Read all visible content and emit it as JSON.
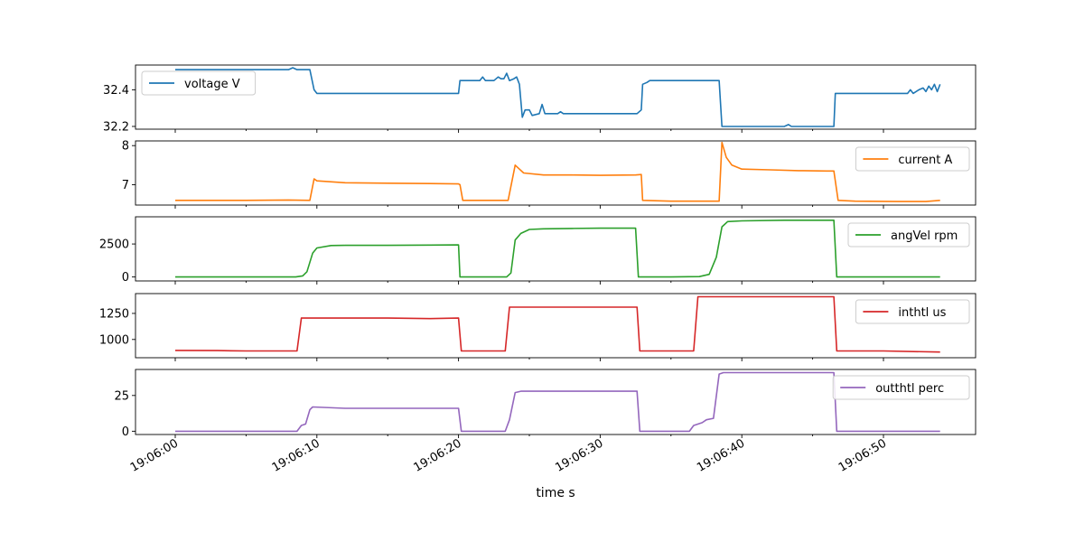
{
  "figure": {
    "xlabel": "time s",
    "x_tick_labels": [
      "19:06:00",
      "19:06:10",
      "19:06:20",
      "19:06:30",
      "19:06:40",
      "19:06:50"
    ]
  },
  "chart_data": [
    {
      "type": "line",
      "series": [
        {
          "name": "voltage V",
          "color": "#1f77b4",
          "points": [
            [
              0,
              32.51
            ],
            [
              2,
              32.51
            ],
            [
              4,
              32.51
            ],
            [
              6,
              32.51
            ],
            [
              8,
              32.51
            ],
            [
              8.3,
              32.52
            ],
            [
              8.6,
              32.51
            ],
            [
              9.5,
              32.51
            ],
            [
              9.8,
              32.4
            ],
            [
              10,
              32.38
            ],
            [
              12,
              32.38
            ],
            [
              15,
              32.38
            ],
            [
              18,
              32.38
            ],
            [
              20,
              32.38
            ],
            [
              20.1,
              32.45
            ],
            [
              21,
              32.45
            ],
            [
              21.5,
              32.45
            ],
            [
              21.7,
              32.47
            ],
            [
              21.9,
              32.45
            ],
            [
              22.5,
              32.45
            ],
            [
              22.8,
              32.47
            ],
            [
              23,
              32.46
            ],
            [
              23.2,
              32.46
            ],
            [
              23.4,
              32.49
            ],
            [
              23.6,
              32.45
            ],
            [
              23.9,
              32.46
            ],
            [
              24.1,
              32.47
            ],
            [
              24.3,
              32.43
            ],
            [
              24.5,
              32.25
            ],
            [
              24.7,
              32.29
            ],
            [
              25,
              32.29
            ],
            [
              25.2,
              32.26
            ],
            [
              25.7,
              32.27
            ],
            [
              25.9,
              32.32
            ],
            [
              26.1,
              32.27
            ],
            [
              26.5,
              32.27
            ],
            [
              27,
              32.27
            ],
            [
              27.2,
              32.28
            ],
            [
              27.4,
              32.27
            ],
            [
              30,
              32.27
            ],
            [
              32.6,
              32.27
            ],
            [
              32.9,
              32.29
            ],
            [
              33,
              32.43
            ],
            [
              33.3,
              32.44
            ],
            [
              33.5,
              32.45
            ],
            [
              35,
              32.45
            ],
            [
              38,
              32.45
            ],
            [
              38.4,
              32.45
            ],
            [
              38.6,
              32.2
            ],
            [
              40,
              32.2
            ],
            [
              43,
              32.2
            ],
            [
              43.3,
              32.21
            ],
            [
              43.5,
              32.2
            ],
            [
              46.5,
              32.2
            ],
            [
              46.6,
              32.38
            ],
            [
              48,
              32.38
            ],
            [
              51,
              32.38
            ],
            [
              51.7,
              32.38
            ],
            [
              51.9,
              32.4
            ],
            [
              52.1,
              32.38
            ],
            [
              52.5,
              32.4
            ],
            [
              52.8,
              32.41
            ],
            [
              53,
              32.39
            ],
            [
              53.2,
              32.42
            ],
            [
              53.4,
              32.4
            ],
            [
              53.6,
              32.43
            ],
            [
              53.8,
              32.39
            ],
            [
              54,
              32.43
            ]
          ]
        }
      ],
      "yticks": [
        32.2,
        32.4
      ],
      "ylim": [
        32.185,
        32.535
      ],
      "legend": "upper left"
    },
    {
      "type": "line",
      "series": [
        {
          "name": "current A",
          "color": "#ff7f0e",
          "points": [
            [
              0,
              6.6
            ],
            [
              2,
              6.6
            ],
            [
              5,
              6.6
            ],
            [
              8,
              6.61
            ],
            [
              9.5,
              6.6
            ],
            [
              9.8,
              7.15
            ],
            [
              10,
              7.1
            ],
            [
              12,
              7.05
            ],
            [
              15,
              7.04
            ],
            [
              18,
              7.03
            ],
            [
              20,
              7.02
            ],
            [
              20.1,
              7.0
            ],
            [
              20.3,
              6.6
            ],
            [
              22,
              6.6
            ],
            [
              23.5,
              6.6
            ],
            [
              24,
              7.5
            ],
            [
              24.3,
              7.4
            ],
            [
              24.6,
              7.3
            ],
            [
              26,
              7.25
            ],
            [
              28,
              7.25
            ],
            [
              30,
              7.24
            ],
            [
              32.5,
              7.25
            ],
            [
              32.9,
              7.26
            ],
            [
              33,
              6.6
            ],
            [
              35,
              6.58
            ],
            [
              38.4,
              6.58
            ],
            [
              38.6,
              8.08
            ],
            [
              38.9,
              7.7
            ],
            [
              39.3,
              7.5
            ],
            [
              40,
              7.4
            ],
            [
              42,
              7.38
            ],
            [
              44,
              7.36
            ],
            [
              46,
              7.35
            ],
            [
              46.5,
              7.35
            ],
            [
              46.8,
              6.6
            ],
            [
              48,
              6.58
            ],
            [
              51,
              6.57
            ],
            [
              53,
              6.57
            ],
            [
              54,
              6.6
            ]
          ]
        }
      ],
      "yticks": [
        7,
        8
      ],
      "ylim": [
        6.48,
        8.12
      ],
      "legend": "upper right"
    },
    {
      "type": "line",
      "series": [
        {
          "name": "angVel rpm",
          "color": "#2ca02c",
          "points": [
            [
              0,
              0
            ],
            [
              5,
              0
            ],
            [
              8.5,
              0
            ],
            [
              9,
              80
            ],
            [
              9.3,
              400
            ],
            [
              9.7,
              1800
            ],
            [
              10,
              2200
            ],
            [
              11,
              2380
            ],
            [
              12,
              2400
            ],
            [
              15,
              2400
            ],
            [
              18,
              2420
            ],
            [
              20,
              2430
            ],
            [
              20.1,
              0
            ],
            [
              22,
              0
            ],
            [
              23.4,
              0
            ],
            [
              23.7,
              300
            ],
            [
              24,
              2800
            ],
            [
              24.4,
              3300
            ],
            [
              25,
              3600
            ],
            [
              26,
              3650
            ],
            [
              28,
              3680
            ],
            [
              30,
              3700
            ],
            [
              32.5,
              3700
            ],
            [
              32.7,
              0
            ],
            [
              35,
              0
            ],
            [
              37,
              30
            ],
            [
              37.7,
              200
            ],
            [
              38.2,
              1500
            ],
            [
              38.6,
              3800
            ],
            [
              39,
              4200
            ],
            [
              40,
              4250
            ],
            [
              43,
              4300
            ],
            [
              46.5,
              4300
            ],
            [
              46.7,
              0
            ],
            [
              50,
              0
            ],
            [
              54,
              0
            ]
          ]
        }
      ],
      "yticks": [
        0,
        2500
      ],
      "ylim": [
        -300,
        4560
      ],
      "legend": "upper right"
    },
    {
      "type": "line",
      "series": [
        {
          "name": "inthtl us",
          "color": "#d62728",
          "points": [
            [
              0,
              895
            ],
            [
              3,
              893
            ],
            [
              5,
              890
            ],
            [
              8.6,
              890
            ],
            [
              8.9,
              1205
            ],
            [
              12,
              1205
            ],
            [
              15,
              1205
            ],
            [
              18,
              1200
            ],
            [
              20,
              1205
            ],
            [
              20.2,
              890
            ],
            [
              23.3,
              890
            ],
            [
              23.6,
              1310
            ],
            [
              26,
              1310
            ],
            [
              30,
              1310
            ],
            [
              32.6,
              1310
            ],
            [
              32.8,
              890
            ],
            [
              36.6,
              890
            ],
            [
              36.9,
              1410
            ],
            [
              40,
              1410
            ],
            [
              44,
              1410
            ],
            [
              46.5,
              1410
            ],
            [
              46.7,
              890
            ],
            [
              50,
              890
            ],
            [
              53.9,
              880
            ],
            [
              54,
              880
            ]
          ]
        }
      ],
      "yticks": [
        1000,
        1250
      ],
      "ylim": [
        825,
        1440
      ],
      "legend": "upper right"
    },
    {
      "type": "line",
      "series": [
        {
          "name": "outthtl perc",
          "color": "#9467bd",
          "points": [
            [
              0,
              0
            ],
            [
              5,
              0
            ],
            [
              8.6,
              0
            ],
            [
              8.9,
              4
            ],
            [
              9.2,
              5
            ],
            [
              9.5,
              15
            ],
            [
              9.7,
              17
            ],
            [
              12,
              16
            ],
            [
              15,
              16
            ],
            [
              20,
              16
            ],
            [
              20.2,
              0
            ],
            [
              23.3,
              0
            ],
            [
              23.6,
              8
            ],
            [
              24,
              27
            ],
            [
              24.4,
              28
            ],
            [
              26,
              28
            ],
            [
              30,
              28
            ],
            [
              32.6,
              28
            ],
            [
              32.8,
              0
            ],
            [
              36.3,
              0
            ],
            [
              36.6,
              4
            ],
            [
              37.2,
              6
            ],
            [
              37.5,
              8
            ],
            [
              38,
              9
            ],
            [
              38.4,
              40
            ],
            [
              38.7,
              41
            ],
            [
              40,
              41
            ],
            [
              43,
              41
            ],
            [
              46.5,
              41
            ],
            [
              46.7,
              0
            ],
            [
              50,
              0
            ],
            [
              54,
              0
            ]
          ]
        }
      ],
      "yticks": [
        0,
        25
      ],
      "ylim": [
        -2.3,
        43.2
      ],
      "legend": "upper right"
    }
  ]
}
